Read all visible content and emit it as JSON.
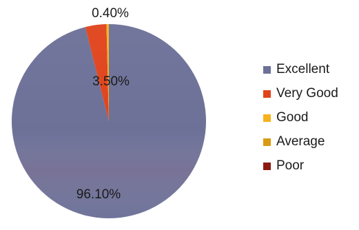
{
  "chart_data": {
    "type": "pie",
    "title": "",
    "categories": [
      "Excellent",
      "Very Good",
      "Good",
      "Average",
      "Poor"
    ],
    "values": [
      96.1,
      3.5,
      0.4,
      0,
      0
    ],
    "unit": "%",
    "data_labels": [
      {
        "category": "Excellent",
        "text": "96.10%"
      },
      {
        "category": "Very Good",
        "text": "3.50%"
      },
      {
        "category": "Good",
        "text": "0.40%"
      }
    ],
    "colors": [
      "#6d7198",
      "#e0441c",
      "#f6b21d",
      "#d99a14",
      "#8c1a12"
    ],
    "start_angle_deg": 0,
    "direction": "clockwise",
    "legend_position": "right"
  }
}
